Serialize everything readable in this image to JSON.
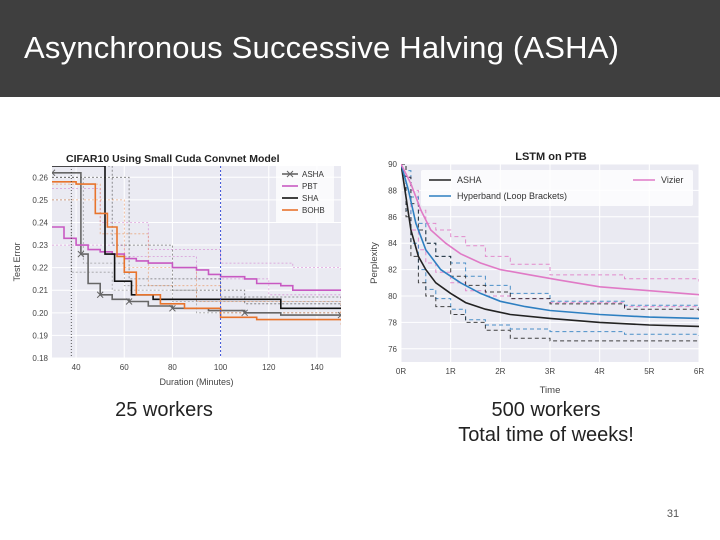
{
  "slide": {
    "title": "Asynchronous Successive Halving (ASHA)",
    "caption_left": "25 workers",
    "caption_right_line1": "500 workers",
    "caption_right_line2": "Total time of weeks!",
    "page_number": "31"
  },
  "chart_data": [
    {
      "type": "line",
      "title": "CIFAR10 Using Small Cuda Convnet Model",
      "xlabel": "Duration (Minutes)",
      "ylabel": "Test Error",
      "xlim": [
        30,
        150
      ],
      "ylim": [
        0.18,
        0.265
      ],
      "xticks": [
        40,
        60,
        80,
        100,
        120,
        140
      ],
      "yticks": [
        0.18,
        0.19,
        0.2,
        0.21,
        0.22,
        0.23,
        0.24,
        0.25,
        0.26
      ],
      "ytick_labels": [
        "0.18",
        "0.19",
        "0.20",
        "0.21",
        "0.22",
        "0.23",
        "0.24",
        "0.25",
        "0.26"
      ],
      "vline": {
        "x": 100,
        "color": "#3b4fd6"
      },
      "grid": true,
      "legend_position": "top-right",
      "series": [
        {
          "name": "ASHA",
          "color": "#666666",
          "marker": "x",
          "x": [
            30,
            38,
            42,
            45,
            50,
            55,
            62,
            70,
            80,
            95,
            110,
            125,
            150
          ],
          "y": [
            0.262,
            0.262,
            0.226,
            0.213,
            0.208,
            0.206,
            0.205,
            0.203,
            0.202,
            0.201,
            0.2,
            0.199,
            0.199
          ]
        },
        {
          "name": "PBT",
          "color": "#c859c2",
          "marker": "",
          "x": [
            30,
            35,
            40,
            45,
            50,
            55,
            60,
            65,
            70,
            80,
            90,
            95,
            100,
            110,
            115,
            125,
            130,
            140,
            150
          ],
          "y": [
            0.238,
            0.233,
            0.23,
            0.228,
            0.227,
            0.226,
            0.224,
            0.223,
            0.222,
            0.22,
            0.219,
            0.217,
            0.216,
            0.215,
            0.213,
            0.212,
            0.21,
            0.21,
            0.21
          ]
        },
        {
          "name": "SHA",
          "color": "#111111",
          "marker": "",
          "x": [
            30,
            50,
            52,
            56,
            63,
            72,
            100,
            125,
            150
          ],
          "y": [
            0.265,
            0.265,
            0.226,
            0.214,
            0.208,
            0.206,
            0.206,
            0.202,
            0.202
          ]
        },
        {
          "name": "BOHB",
          "color": "#e8742c",
          "marker": "",
          "x": [
            30,
            35,
            40,
            48,
            53,
            57,
            60,
            65,
            75,
            85,
            100,
            115,
            130,
            150
          ],
          "y": [
            0.258,
            0.258,
            0.257,
            0.244,
            0.238,
            0.225,
            0.218,
            0.208,
            0.204,
            0.202,
            0.198,
            0.197,
            0.197,
            0.197
          ]
        }
      ]
    },
    {
      "type": "line",
      "title": "LSTM on PTB",
      "xlabel": "Time",
      "ylabel": "Perplexity",
      "xlim": [
        0,
        6
      ],
      "ylim": [
        75,
        90
      ],
      "xticks": [
        0,
        1,
        2,
        3,
        4,
        5,
        6
      ],
      "xtick_labels": [
        "0R",
        "1R",
        "2R",
        "3R",
        "4R",
        "5R",
        "6R"
      ],
      "yticks": [
        76,
        78,
        80,
        82,
        84,
        86,
        88,
        90
      ],
      "grid": true,
      "legend_position": "top",
      "series": [
        {
          "name": "ASHA",
          "color": "#222222",
          "x": [
            0,
            0.1,
            0.2,
            0.35,
            0.5,
            0.7,
            1,
            1.3,
            1.7,
            2.2,
            3,
            4,
            5,
            6
          ],
          "y": [
            90,
            87.5,
            85,
            83,
            82,
            81,
            80.2,
            79.5,
            79,
            78.6,
            78.3,
            78.0,
            77.8,
            77.7
          ]
        },
        {
          "name": "Hyperband (Loop Brackets)",
          "color": "#2e7fc1",
          "x": [
            0,
            0.15,
            0.3,
            0.5,
            0.8,
            1.2,
            1.6,
            2,
            2.5,
            3,
            4,
            5,
            6
          ],
          "y": [
            90,
            88,
            85.5,
            83.5,
            82,
            81,
            80.2,
            79.6,
            79.2,
            78.9,
            78.6,
            78.4,
            78.3
          ]
        },
        {
          "name": "Vizier",
          "color": "#e07ac6",
          "x": [
            0,
            0.2,
            0.4,
            0.6,
            0.9,
            1.2,
            1.6,
            2,
            2.6,
            3.2,
            4,
            5,
            6
          ],
          "y": [
            90,
            88.5,
            86.5,
            85,
            84,
            83.2,
            82.5,
            82,
            81.6,
            81.2,
            80.7,
            80.4,
            80.1
          ]
        }
      ]
    }
  ]
}
